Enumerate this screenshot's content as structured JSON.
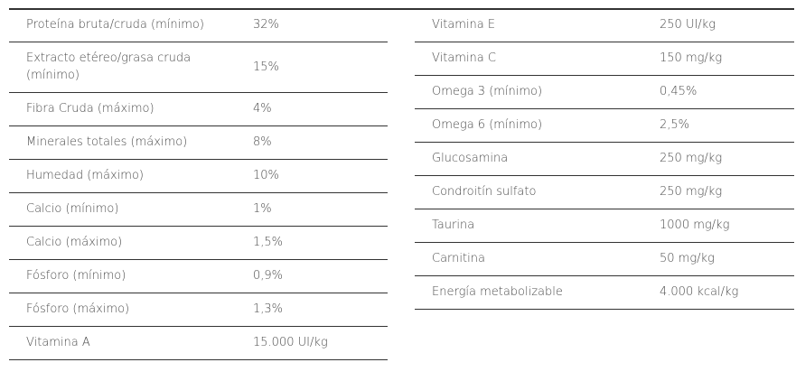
{
  "left": {
    "rows": [
      [
        "Proteína bruta/cruda (mínimo)",
        "32%"
      ],
      [
        "Extracto etéreo/grasa cruda (mínimo)",
        "15%"
      ],
      [
        "Fibra Cruda (máximo)",
        "4%"
      ],
      [
        "Minerales totales (máximo)",
        "8%"
      ],
      [
        "Humedad (máximo)",
        "10%"
      ],
      [
        "Calcio (mínimo)",
        "1%"
      ],
      [
        "Calcio (máximo)",
        "1,5%"
      ],
      [
        "Fósforo (mínimo)",
        "0,9%"
      ],
      [
        "Fósforo (máximo)",
        "1,3%"
      ],
      [
        "Vitamina A",
        "15.000 UI/kg"
      ]
    ]
  },
  "right": {
    "rows": [
      [
        "Vitamina E",
        "250 UI/kg"
      ],
      [
        "Vitamina C",
        "150 mg/kg"
      ],
      [
        "Omega 3 (mínimo)",
        "0,45%"
      ],
      [
        "Omega 6 (mínimo)",
        "2,5%"
      ],
      [
        "Glucosamina",
        "250 mg/kg"
      ],
      [
        "Condroitín sulfato",
        "250 mg/kg"
      ],
      [
        "Taurina",
        "1000 mg/kg"
      ],
      [
        "Carnitina",
        "50 mg/kg"
      ],
      [
        "Energía metabolizable",
        "4.000 kcal/kg"
      ]
    ]
  }
}
